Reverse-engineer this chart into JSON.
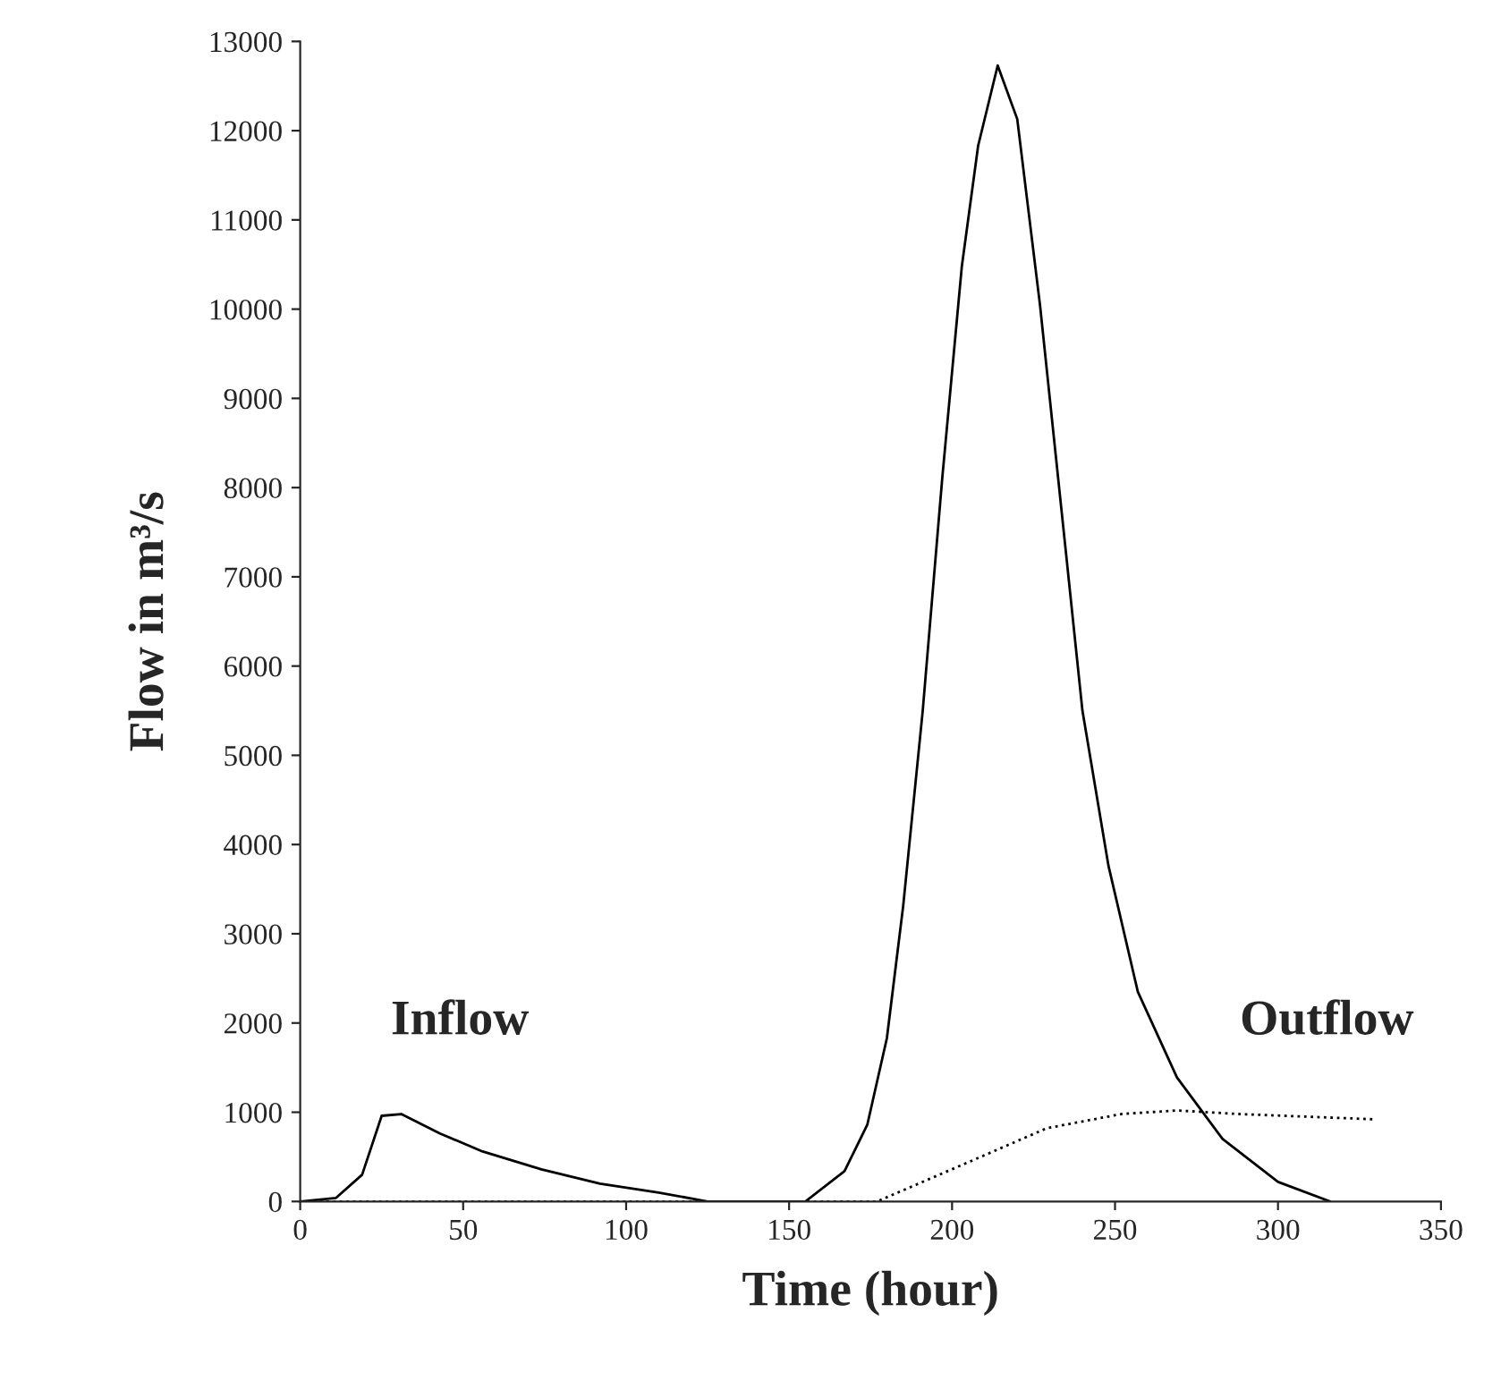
{
  "chart_data": {
    "type": "line",
    "xlabel": "Time (hour)",
    "ylabel": "Flow in m³/s",
    "xlim": [
      0,
      350
    ],
    "ylim": [
      0,
      13000
    ],
    "xticks": [
      0,
      50,
      100,
      150,
      200,
      250,
      300,
      350
    ],
    "yticks": [
      0,
      1000,
      2000,
      3000,
      4000,
      5000,
      6000,
      7000,
      8000,
      9000,
      10000,
      11000,
      12000,
      13000
    ],
    "grid": false,
    "legend": false,
    "marker": "none",
    "annotations": [
      "Inflow",
      "Outflow"
    ],
    "series": [
      {
        "color": "#000000",
        "line_style": "solid",
        "x": [
          0,
          11,
          19,
          25,
          31,
          43,
          56,
          74,
          92,
          110,
          125,
          155,
          167,
          174,
          180,
          185,
          191,
          197,
          203,
          208,
          214,
          220,
          227,
          235,
          240,
          248,
          257,
          269,
          283,
          300,
          316
        ],
        "values": [
          0,
          40,
          300,
          960,
          980,
          760,
          560,
          360,
          200,
          100,
          0,
          0,
          340,
          860,
          1830,
          3310,
          5500,
          8110,
          10480,
          11830,
          12730,
          12130,
          10040,
          7250,
          5500,
          3760,
          2350,
          1390,
          700,
          220,
          0
        ]
      },
      {
        "color": "#000000",
        "line_style": "dotted",
        "x": [
          0,
          60,
          120,
          177,
          205,
          229,
          252,
          269,
          288,
          330
        ],
        "values": [
          0,
          0,
          0,
          0,
          440,
          820,
          980,
          1020,
          980,
          920
        ]
      }
    ]
  }
}
